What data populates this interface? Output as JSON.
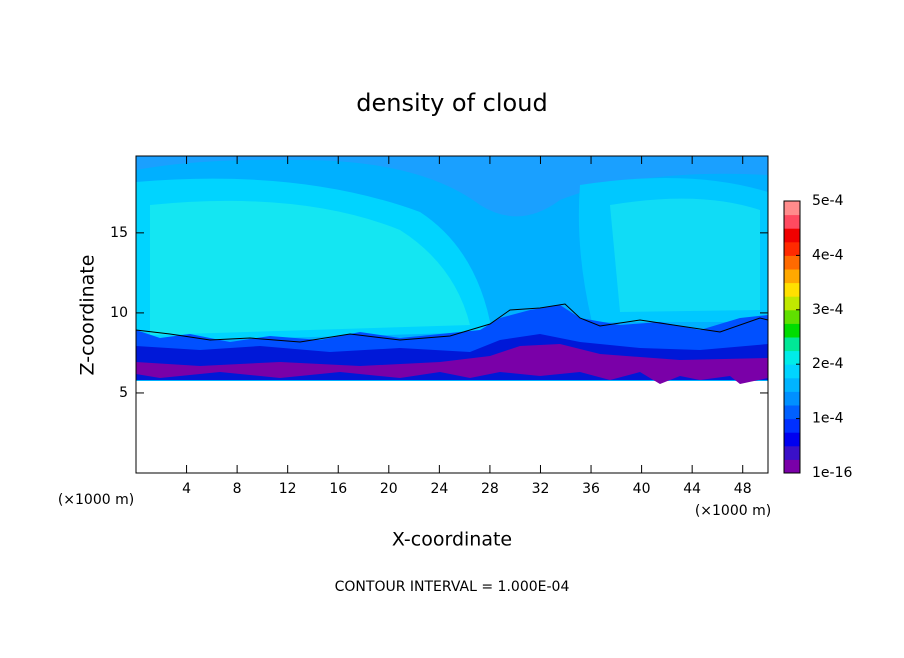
{
  "chart_data": {
    "type": "contour",
    "title": "density of cloud",
    "x_label": "X-coordinate",
    "y_label": "Z-coordinate",
    "x_unit_label": "(×1000 m)",
    "xlim": [
      0,
      50
    ],
    "xticks": [
      4,
      8,
      12,
      16,
      20,
      24,
      28,
      32,
      36,
      40,
      44,
      48
    ],
    "ylim": [
      0,
      19.8
    ],
    "yticks": [
      5,
      10,
      15
    ],
    "colorbar": {
      "lim": [
        0,
        0.0005
      ],
      "ticks": [
        {
          "value": 1e-16,
          "label": "1e-16"
        },
        {
          "value": 0.0001,
          "label": "1e-4"
        },
        {
          "value": 0.0002,
          "label": "2e-4"
        },
        {
          "value": 0.0003,
          "label": "3e-4"
        },
        {
          "value": 0.0004,
          "label": "4e-4"
        },
        {
          "value": 0.0005,
          "label": "5e-4"
        }
      ],
      "colors": [
        "#7a00a8",
        "#3a10c8",
        "#0000f0",
        "#0030ff",
        "#0060ff",
        "#0090ff",
        "#00b4ff",
        "#00d4ff",
        "#00ece8",
        "#00e896",
        "#00dc00",
        "#60e000",
        "#c0e800",
        "#ffe000",
        "#ffa800",
        "#ff6a00",
        "#ff2a00",
        "#f00000",
        "#ff4a60",
        "#ff8c8c"
      ]
    },
    "annotation": "CONTOUR INTERVAL = 1.000E-04"
  }
}
